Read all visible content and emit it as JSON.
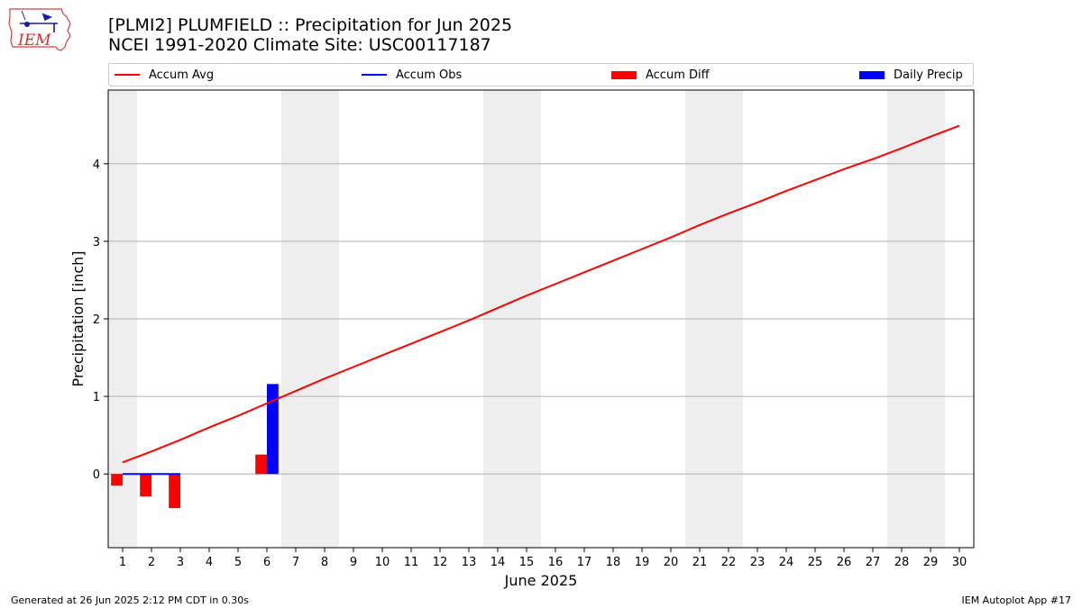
{
  "header": {
    "logo_text": "IEM",
    "title_line1": "[PLMI2] PLUMFIELD :: Precipitation for Jun 2025",
    "title_line2": "NCEI 1991-2020 Climate Site: USC00117187"
  },
  "legend": {
    "items": [
      {
        "label": "Accum Avg",
        "kind": "line",
        "color": "#ff0000"
      },
      {
        "label": "Accum Obs",
        "kind": "line",
        "color": "#0000ff"
      },
      {
        "label": "Accum Diff",
        "kind": "box",
        "color": "#ff0000"
      },
      {
        "label": "Daily Precip",
        "kind": "box",
        "color": "#0000ff"
      }
    ]
  },
  "footer": {
    "left": "Generated at 26 Jun 2025 2:12 PM CDT in 0.30s",
    "right": "IEM Autoplot App #17"
  },
  "chart_data": {
    "type": "bar",
    "title": "[PLMI2] PLUMFIELD :: Precipitation for Jun 2025",
    "subtitle": "NCEI 1991-2020 Climate Site: USC00117187",
    "xlabel": "June 2025",
    "ylabel": "Precipitation [inch]",
    "x": [
      1,
      2,
      3,
      4,
      5,
      6,
      7,
      8,
      9,
      10,
      11,
      12,
      13,
      14,
      15,
      16,
      17,
      18,
      19,
      20,
      21,
      22,
      23,
      24,
      25,
      26,
      27,
      28,
      29,
      30
    ],
    "xticks": [
      "1",
      "2",
      "3",
      "4",
      "5",
      "6",
      "7",
      "8",
      "9",
      "10",
      "11",
      "12",
      "13",
      "14",
      "15",
      "16",
      "17",
      "18",
      "19",
      "20",
      "21",
      "22",
      "23",
      "24",
      "25",
      "26",
      "27",
      "28",
      "29",
      "30"
    ],
    "xlim": [
      0.5,
      30.5
    ],
    "ylim": [
      -0.95,
      4.95
    ],
    "yticks": [
      0,
      1,
      2,
      3,
      4
    ],
    "grid": "horizontal",
    "legend_position": "top",
    "weekend_shading": [
      [
        0.5,
        1.5
      ],
      [
        6.5,
        8.5
      ],
      [
        13.5,
        15.5
      ],
      [
        20.5,
        22.5
      ],
      [
        27.5,
        29.5
      ]
    ],
    "series": [
      {
        "name": "Accum Avg",
        "type": "line",
        "color": "#ff0000",
        "x": [
          1,
          2,
          3,
          4,
          5,
          6,
          7,
          8,
          9,
          10,
          11,
          12,
          13,
          14,
          15,
          16,
          17,
          18,
          19,
          20,
          21,
          22,
          23,
          24,
          25,
          26,
          27,
          28,
          29,
          30
        ],
        "values": [
          0.15,
          0.29,
          0.44,
          0.6,
          0.75,
          0.91,
          1.07,
          1.23,
          1.38,
          1.53,
          1.68,
          1.83,
          1.98,
          2.14,
          2.3,
          2.45,
          2.6,
          2.75,
          2.9,
          3.05,
          3.21,
          3.36,
          3.5,
          3.65,
          3.79,
          3.93,
          4.06,
          4.2,
          4.35,
          4.49
        ]
      },
      {
        "name": "Accum Obs",
        "type": "line",
        "color": "#0000ff",
        "x": [
          1,
          2,
          3
        ],
        "values": [
          0.0,
          0.0,
          0.0
        ]
      },
      {
        "name": "Accum Diff",
        "type": "bar",
        "color": "#ff0000",
        "x": [
          1,
          2,
          3,
          6
        ],
        "values": [
          -0.15,
          -0.29,
          -0.44,
          0.25
        ]
      },
      {
        "name": "Daily Precip",
        "type": "bar",
        "color": "#0000ff",
        "x": [
          1,
          2,
          3,
          6
        ],
        "values": [
          0.0,
          0.0,
          0.0,
          1.16
        ]
      }
    ]
  }
}
